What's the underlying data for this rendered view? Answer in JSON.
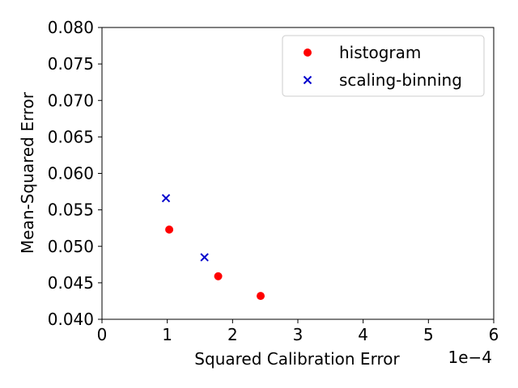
{
  "chart_data": {
    "type": "scatter",
    "xlabel": "Squared Calibration Error",
    "ylabel": "Mean-Squared Error",
    "x_offset_text": "1e−4",
    "xlim": [
      0,
      6
    ],
    "ylim": [
      0.04,
      0.08
    ],
    "x_ticks": [
      0,
      1,
      2,
      3,
      4,
      5,
      6
    ],
    "x_tick_labels": [
      "0",
      "1",
      "2",
      "3",
      "4",
      "5",
      "6"
    ],
    "y_ticks": [
      0.04,
      0.045,
      0.05,
      0.055,
      0.06,
      0.065,
      0.07,
      0.075,
      0.08
    ],
    "y_tick_labels": [
      "0.040",
      "0.045",
      "0.050",
      "0.055",
      "0.060",
      "0.065",
      "0.070",
      "0.075",
      "0.080"
    ],
    "grid": false,
    "legend_position": "top-right",
    "series": [
      {
        "name": "histogram",
        "marker": "circle",
        "color": "#ff0000",
        "points": [
          {
            "x": 1.03,
            "y": 0.0523
          },
          {
            "x": 1.78,
            "y": 0.0459
          },
          {
            "x": 2.43,
            "y": 0.0432
          }
        ]
      },
      {
        "name": "scaling-binning",
        "marker": "x",
        "color": "#0000cc",
        "points": [
          {
            "x": 0.98,
            "y": 0.0566
          },
          {
            "x": 1.57,
            "y": 0.0485
          }
        ]
      }
    ]
  }
}
